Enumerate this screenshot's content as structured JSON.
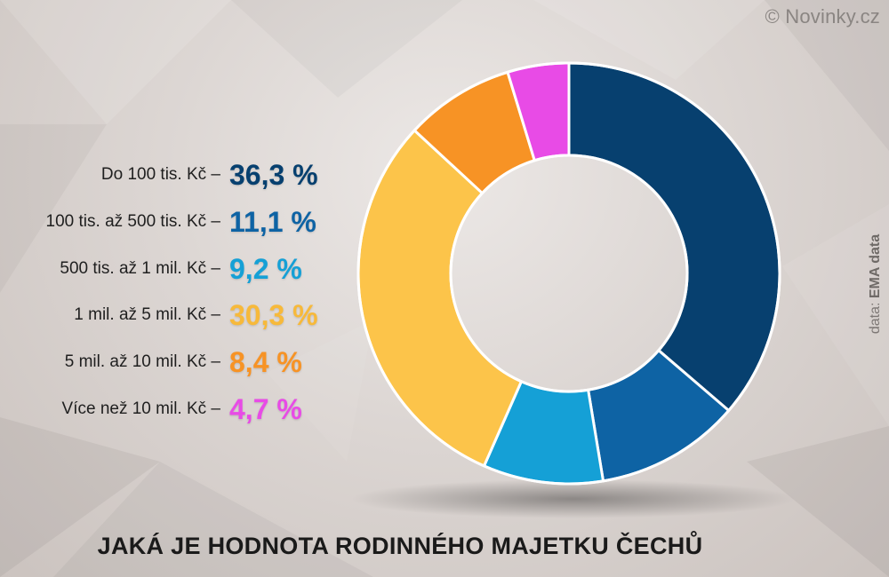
{
  "credit": "© Novinky.cz",
  "source": {
    "prefix": "data: ",
    "name": "EMA data"
  },
  "chart_data": {
    "type": "pie",
    "title": "JAKÁ JE HODNOTA RODINNÉHO MAJETKU ČECHŮ",
    "categories": [
      "Do 100 tis. Kč –",
      "100 tis. až 500 tis. Kč –",
      "500 tis. až 1 mil. Kč –",
      "1 mil. až 5 mil. Kč –",
      "5 mil. až 10 mil. Kč –",
      "Více než 10 mil. Kč –"
    ],
    "values": [
      36.3,
      11.1,
      9.2,
      30.3,
      8.4,
      4.7
    ],
    "value_labels": [
      "36,3 %",
      "11,1 %",
      "9,2 %",
      "30,3 %",
      "8,4 %",
      "4,7 %"
    ],
    "colors": [
      "#07406f",
      "#0e63a4",
      "#15a0d6",
      "#fcc44a",
      "#f79325",
      "#e84be6"
    ],
    "label_colors": [
      "#07406f",
      "#0e63a4",
      "#15a0d6",
      "#f7b93a",
      "#f79325",
      "#e84be6"
    ],
    "donut": true
  }
}
